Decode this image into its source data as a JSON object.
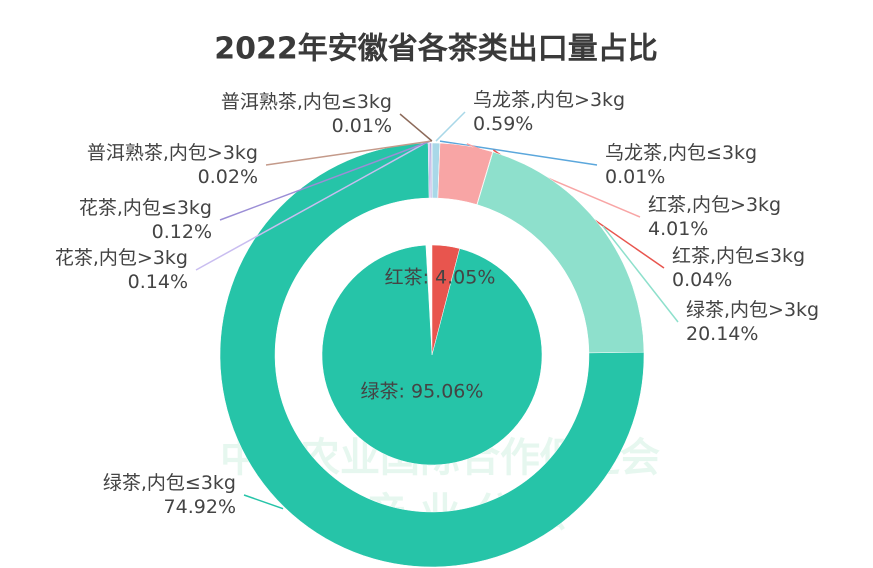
{
  "chart_data": {
    "type": "nested_pie",
    "title": "2022年安徽省各茶类出口量占比",
    "watermark": [
      "中国农业国际合作促进会",
      "茶 产 业 分 会"
    ],
    "inner": {
      "values": [
        4.05,
        95.06
      ],
      "value_labels": [
        "红茶: 4.05%",
        "绿茶: 95.06%"
      ],
      "colors": [
        "#e8554e",
        "#26c4a8"
      ]
    },
    "outer": {
      "categories": [
        "乌龙茶,内包>3kg",
        "乌龙茶,内包≤3kg",
        "红茶,内包>3kg",
        "红茶,内包≤3kg",
        "绿茶,内包>3kg",
        "绿茶,内包≤3kg",
        "花茶,内包>3kg",
        "花茶,内包≤3kg",
        "普洱熟茶,内包>3kg",
        "普洱熟茶,内包≤3kg"
      ],
      "values": [
        0.59,
        0.01,
        4.01,
        0.04,
        20.14,
        74.92,
        0.14,
        0.12,
        0.02,
        0.01
      ],
      "value_labels": [
        "0.59%",
        "0.01%",
        "4.01%",
        "0.04%",
        "20.14%",
        "74.92%",
        "0.14%",
        "0.12%",
        "0.02%",
        "0.01%"
      ],
      "colors": [
        "#a9d8e8",
        "#5ba7dc",
        "#f8a5a5",
        "#e8554e",
        "#8ee0cc",
        "#26c4a8",
        "#c9bdf0",
        "#9b8ed6",
        "#c49a8a",
        "#8c6a5a"
      ]
    }
  }
}
